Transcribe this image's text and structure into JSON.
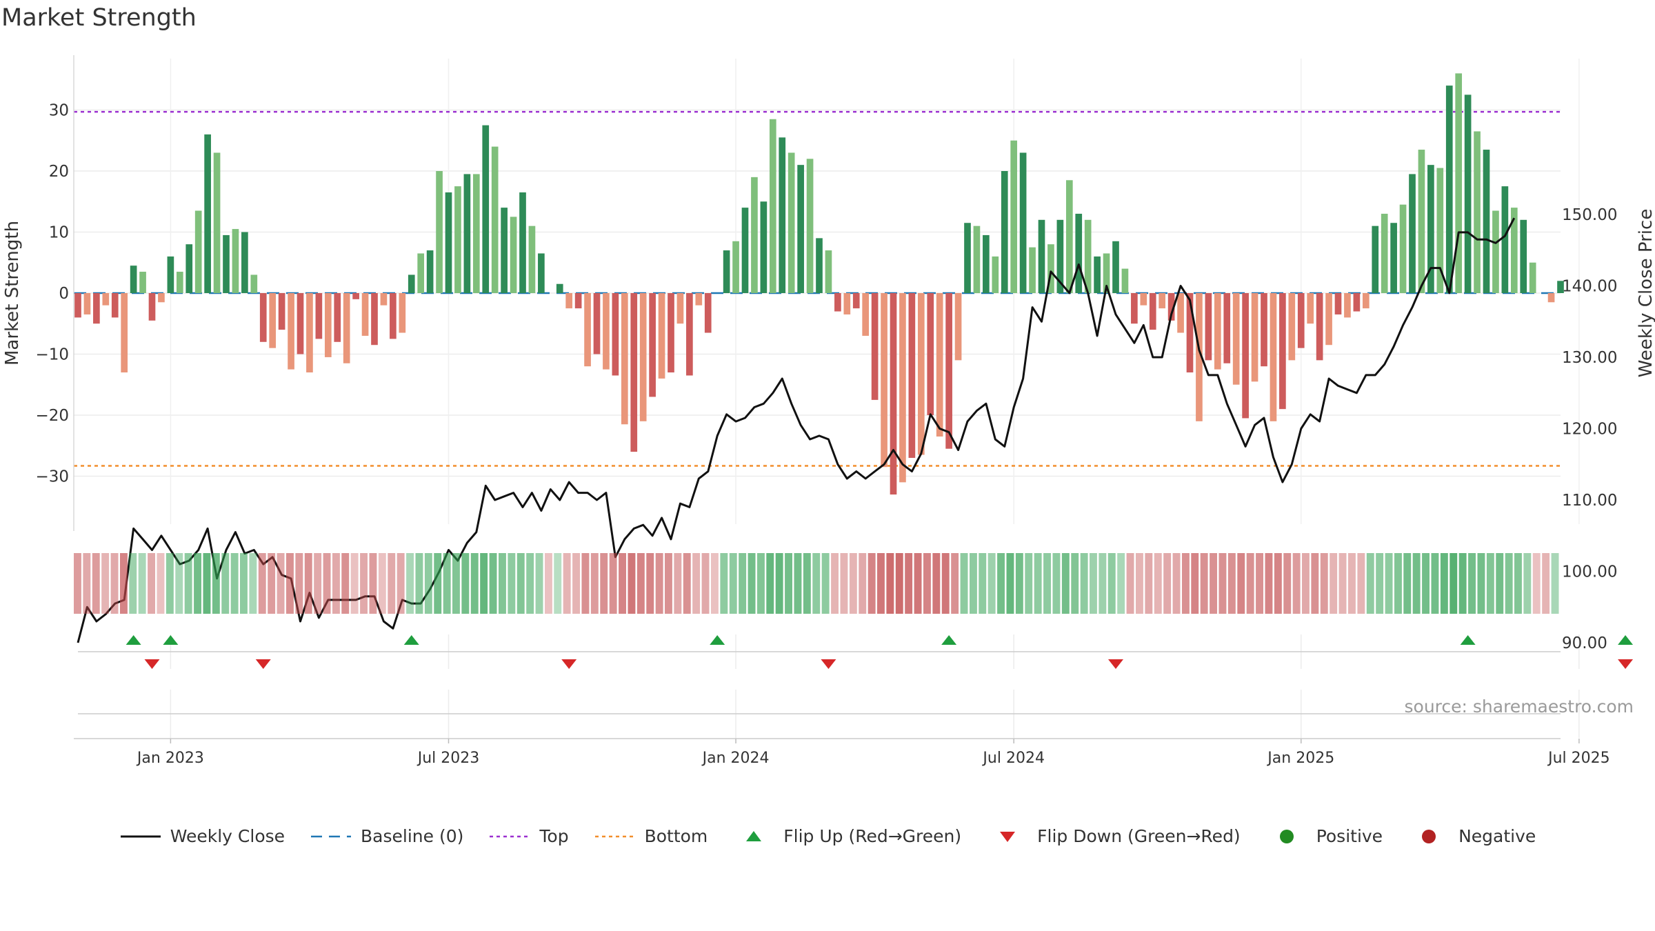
{
  "chart_data": {
    "type": "bar",
    "title": "Market Strength",
    "ylabel": "Market Strength",
    "y2label": "Weekly Close Price",
    "ylim": [
      -39,
      39
    ],
    "y2lim": [
      86,
      152
    ],
    "yticks": [
      30,
      20,
      10,
      0,
      -10,
      -20,
      -30
    ],
    "ytick_labels": [
      "30",
      "20",
      "10",
      "0",
      "−10",
      "−20",
      "−30"
    ],
    "y2ticks": [
      150,
      140,
      130,
      120,
      110,
      100,
      90
    ],
    "y2tick_labels": [
      "150.00",
      "140.00",
      "130.00",
      "120.00",
      "110.00",
      "100.00",
      "90.00"
    ],
    "xtick_labels": [
      "Jan 2023",
      "Jul 2023",
      "Jan 2024",
      "Jul 2024",
      "Jan 2025",
      "Jul 2025"
    ],
    "xtick_weeks": [
      10,
      40,
      71,
      101,
      132,
      162
    ],
    "top_line": 29.7,
    "bottom_line": -28.3,
    "colors": {
      "pos_strong": "#2e8b57",
      "pos_light": "#7fbf7b",
      "neg_strong": "#cd5c5c",
      "neg_light": "#e9967a",
      "price_line": "#111111",
      "baseline": "#1f77b4",
      "top": "#9b30d0",
      "bottom": "#f28e2b",
      "flip_up": "#1f9e3e",
      "flip_down": "#d62728",
      "positive": "#228b22",
      "negative": "#b22222"
    },
    "strength": [
      -4,
      -3.5,
      -5,
      -2,
      -4,
      -13,
      4.5,
      3.5,
      -4.5,
      -1.5,
      6,
      3.5,
      8,
      13.5,
      26,
      23,
      9.5,
      10.5,
      10,
      3,
      -8,
      -9,
      -6,
      -12.5,
      -10,
      -13,
      -7.5,
      -10.5,
      -8,
      -11.5,
      -1,
      -7,
      -8.5,
      -2,
      -7.5,
      -6.5,
      3,
      6.5,
      7,
      20,
      16.5,
      17.5,
      19.5,
      19.5,
      27.5,
      24,
      14,
      12.5,
      16.5,
      11,
      6.5,
      0,
      1.5,
      -2.5,
      -2.5,
      -12,
      -10,
      -12.5,
      -13.5,
      -21.5,
      -26,
      -21,
      -17,
      -14,
      -13,
      -5,
      -13.5,
      -2,
      -6.5,
      0,
      7,
      8.5,
      14,
      19,
      15,
      28.5,
      25.5,
      23,
      21,
      22,
      9,
      7,
      -3,
      -3.5,
      -2.5,
      -7,
      -17.5,
      -28.5,
      -33,
      -31,
      -27,
      -26.5,
      -20,
      -23.5,
      -25.5,
      -11,
      11.5,
      11,
      9.5,
      6,
      20,
      25,
      23,
      7.5,
      12,
      8,
      12,
      18.5,
      13,
      12,
      6,
      6.5,
      8.5,
      4,
      -5,
      -2,
      -6,
      -2.5,
      -4.5,
      -6.5,
      -13,
      -21,
      -11,
      -12.5,
      -11.5,
      -15,
      -20.5,
      -14.5,
      -12,
      -21,
      -19,
      -11,
      -9,
      -5,
      -11,
      -8.5,
      -3.5,
      -4,
      -3,
      -2.5,
      11,
      13,
      11.5,
      14.5,
      19.5,
      23.5,
      21,
      20.5,
      34,
      36,
      32.5,
      26.5,
      23.5,
      13.5,
      17.5,
      14,
      12,
      5,
      0,
      -1.5,
      2
    ],
    "price": [
      90,
      95,
      93,
      94,
      95.5,
      96,
      106,
      104.5,
      103,
      105,
      103,
      101,
      101.5,
      103,
      106,
      99,
      103,
      105.5,
      102.5,
      103,
      101,
      102,
      99.5,
      99,
      93,
      97,
      93.5,
      96,
      96,
      96,
      96,
      96.5,
      96.5,
      93,
      92,
      96,
      95.5,
      95.5,
      97.5,
      100,
      103,
      101.5,
      104,
      105.5,
      112,
      110,
      110.5,
      111,
      109,
      111,
      108.5,
      111.5,
      110,
      112.5,
      111,
      111,
      110,
      111,
      102,
      104.5,
      106,
      106.5,
      105,
      107.5,
      104.5,
      109.5,
      109,
      113,
      114,
      119,
      122,
      121,
      121.5,
      123,
      123.5,
      125,
      127,
      123.5,
      120.5,
      118.5,
      119,
      118.5,
      115,
      113,
      114,
      113,
      114,
      115,
      117,
      115,
      114,
      116.5,
      122,
      120,
      119.5,
      117,
      121,
      122.5,
      123.5,
      118.5,
      117.5,
      123,
      127,
      137,
      135,
      142,
      140.5,
      139,
      143,
      139,
      133,
      140,
      136,
      134,
      132,
      134.5,
      130,
      130,
      136,
      140,
      138,
      131,
      127.5,
      127.5,
      123.5,
      120.5,
      117.5,
      120.5,
      121.5,
      116,
      112.5,
      115,
      120,
      122,
      121,
      127,
      126,
      125.5,
      125,
      127.5,
      127.5,
      129,
      131.5,
      134.5,
      137,
      140,
      142.5,
      142.5,
      139,
      147.5,
      147.5,
      146.5,
      146.5,
      146,
      147,
      149.5
    ],
    "color_strip_intensity": [
      0.6,
      0.5,
      0.6,
      0.4,
      0.5,
      0.8,
      0.5,
      0.4,
      0.5,
      0.3,
      0.6,
      0.4,
      0.6,
      0.8,
      0.9,
      0.8,
      0.6,
      0.6,
      0.6,
      0.4,
      0.6,
      0.6,
      0.5,
      0.7,
      0.6,
      0.7,
      0.5,
      0.6,
      0.5,
      0.7,
      0.3,
      0.5,
      0.6,
      0.3,
      0.5,
      0.5,
      0.4,
      0.6,
      0.6,
      0.8,
      0.7,
      0.7,
      0.8,
      0.8,
      0.9,
      0.8,
      0.7,
      0.6,
      0.7,
      0.6,
      0.5,
      0.3,
      0.3,
      0.4,
      0.4,
      0.7,
      0.6,
      0.7,
      0.7,
      0.8,
      0.9,
      0.8,
      0.8,
      0.7,
      0.7,
      0.5,
      0.7,
      0.4,
      0.5,
      0.3,
      0.6,
      0.6,
      0.7,
      0.8,
      0.7,
      0.9,
      0.9,
      0.8,
      0.8,
      0.8,
      0.6,
      0.6,
      0.4,
      0.4,
      0.4,
      0.5,
      0.8,
      0.9,
      1,
      1,
      0.9,
      0.9,
      0.8,
      0.9,
      0.9,
      0.7,
      0.6,
      0.6,
      0.6,
      0.5,
      0.8,
      0.9,
      0.8,
      0.6,
      0.6,
      0.6,
      0.6,
      0.8,
      0.7,
      0.6,
      0.5,
      0.5,
      0.6,
      0.4,
      0.5,
      0.4,
      0.5,
      0.4,
      0.5,
      0.5,
      0.7,
      0.8,
      0.7,
      0.7,
      0.7,
      0.7,
      0.8,
      0.7,
      0.7,
      0.8,
      0.8,
      0.7,
      0.6,
      0.5,
      0.7,
      0.6,
      0.4,
      0.4,
      0.4,
      0.4,
      0.6,
      0.6,
      0.6,
      0.7,
      0.8,
      0.8,
      0.8,
      0.8,
      0.9,
      1,
      0.9,
      0.8,
      0.8,
      0.7,
      0.8,
      0.7,
      0.7,
      0.5,
      0.3,
      0.4,
      0.4
    ],
    "flip_up_weeks": [
      6,
      10,
      36,
      69,
      94,
      150,
      167
    ],
    "flip_down_weeks": [
      8,
      20,
      53,
      81,
      112,
      167
    ],
    "legend": [
      {
        "label": "Weekly Close",
        "kind": "line"
      },
      {
        "label": "Baseline (0)",
        "kind": "baseline"
      },
      {
        "label": "Top",
        "kind": "top"
      },
      {
        "label": "Bottom",
        "kind": "bottom"
      },
      {
        "label": "Flip Up (Red→Green)",
        "kind": "up"
      },
      {
        "label": "Flip Down (Green→Red)",
        "kind": "down"
      },
      {
        "label": "Positive",
        "kind": "pos"
      },
      {
        "label": "Negative",
        "kind": "neg"
      }
    ]
  },
  "source": "source: sharemaestro.com"
}
